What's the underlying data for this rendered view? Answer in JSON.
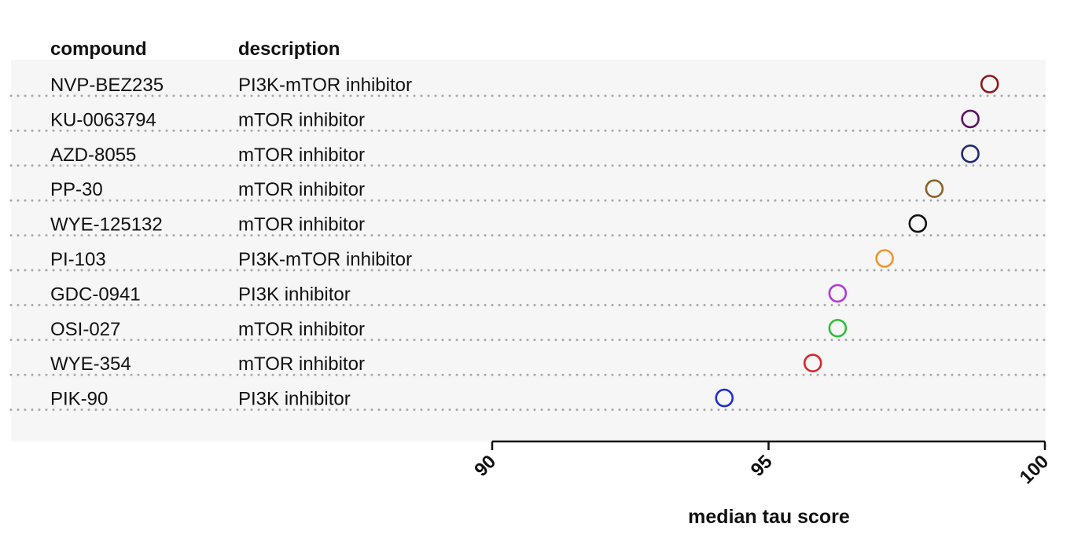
{
  "chart_data": {
    "type": "scatter",
    "title": "",
    "xlabel": "median tau score",
    "ylabel": "",
    "xlim": [
      90,
      100
    ],
    "x_ticks": [
      "90",
      "95",
      "100"
    ],
    "grid": false,
    "legend": "none",
    "columns": {
      "compound": "compound",
      "description": "description"
    },
    "rows": [
      {
        "compound": "NVP-BEZ235",
        "description": "PI3K-mTOR inhibitor",
        "value": 99.0,
        "color": "#8b1a1a"
      },
      {
        "compound": "KU-0063794",
        "description": "mTOR inhibitor",
        "value": 98.65,
        "color": "#5a1463"
      },
      {
        "compound": "AZD-8055",
        "description": "mTOR inhibitor",
        "value": 98.65,
        "color": "#1c2a78"
      },
      {
        "compound": "PP-30",
        "description": "mTOR inhibitor",
        "value": 98.0,
        "color": "#8a6428"
      },
      {
        "compound": "WYE-125132",
        "description": "mTOR inhibitor",
        "value": 97.7,
        "color": "#111111"
      },
      {
        "compound": "PI-103",
        "description": "PI3K-mTOR inhibitor",
        "value": 97.1,
        "color": "#f0962a"
      },
      {
        "compound": "GDC-0941",
        "description": "PI3K inhibitor",
        "value": 96.25,
        "color": "#b03ad6"
      },
      {
        "compound": "OSI-027",
        "description": "mTOR inhibitor",
        "value": 96.25,
        "color": "#2fbf3a"
      },
      {
        "compound": "WYE-354",
        "description": "mTOR inhibitor",
        "value": 95.8,
        "color": "#d9262a"
      },
      {
        "compound": "PIK-90",
        "description": "PI3K inhibitor",
        "value": 94.2,
        "color": "#1c2fd1"
      }
    ]
  }
}
